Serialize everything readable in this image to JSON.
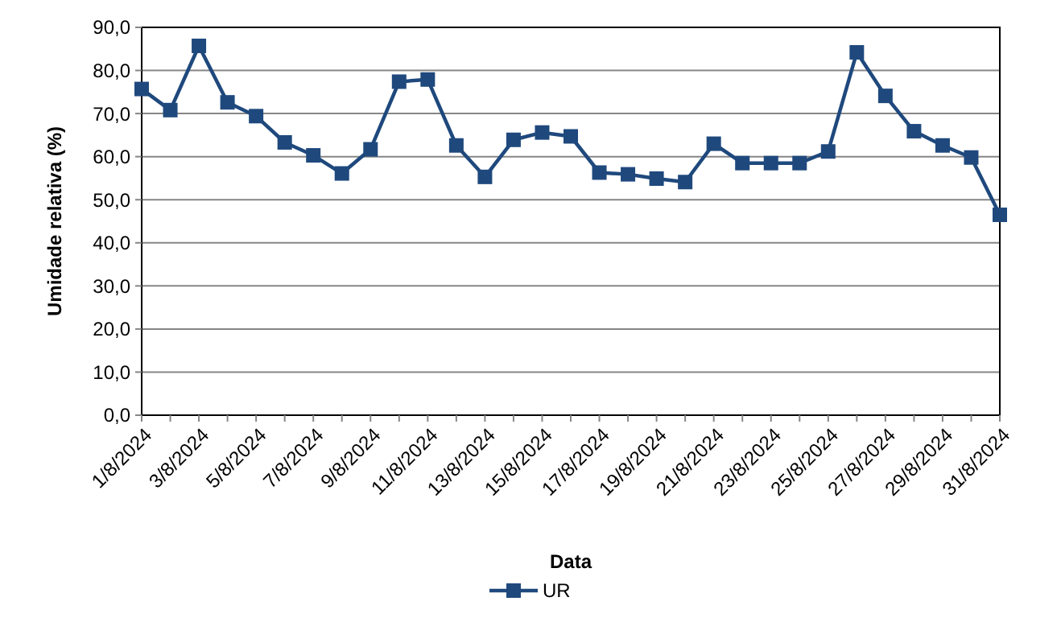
{
  "chart_data": {
    "type": "line",
    "xlabel": "Data",
    "ylabel": "Umidade relativa (%)",
    "categories": [
      "1/8/2024",
      null,
      "3/8/2024",
      null,
      "5/8/2024",
      null,
      "7/8/2024",
      null,
      "9/8/2024",
      null,
      "11/8/2024",
      null,
      "13/8/2024",
      null,
      "15/8/2024",
      null,
      "17/8/2024",
      null,
      "19/8/2024",
      null,
      "21/8/2024",
      null,
      "23/8/2024",
      null,
      "25/8/2024",
      null,
      "27/8/2024",
      null,
      "29/8/2024",
      null,
      "31/8/2024"
    ],
    "series": [
      {
        "name": "UR",
        "color": "#1f497d",
        "values": [
          75.7,
          70.8,
          85.7,
          72.6,
          69.4,
          63.3,
          60.3,
          56.1,
          61.7,
          77.4,
          77.9,
          62.6,
          55.3,
          63.9,
          65.6,
          64.7,
          56.3,
          55.9,
          54.9,
          54.1,
          63,
          58.5,
          58.5,
          58.5,
          61.2,
          84.2,
          74.1,
          65.9,
          62.6,
          59.8,
          46.5
        ]
      }
    ],
    "ylim": [
      0,
      90
    ],
    "yticks": [
      {
        "value": 0,
        "label": "0,0"
      },
      {
        "value": 10,
        "label": "10,0"
      },
      {
        "value": 20,
        "label": "20,0"
      },
      {
        "value": 30,
        "label": "30,0"
      },
      {
        "value": 40,
        "label": "40,0"
      },
      {
        "value": 50,
        "label": "50,0"
      },
      {
        "value": 60,
        "label": "60,0"
      },
      {
        "value": 70,
        "label": "70,0"
      },
      {
        "value": 80,
        "label": "80,0"
      },
      {
        "value": 90,
        "label": "90,0"
      }
    ],
    "grid": "y",
    "legend": "bottom",
    "marker": "square",
    "line_style": "solid"
  }
}
